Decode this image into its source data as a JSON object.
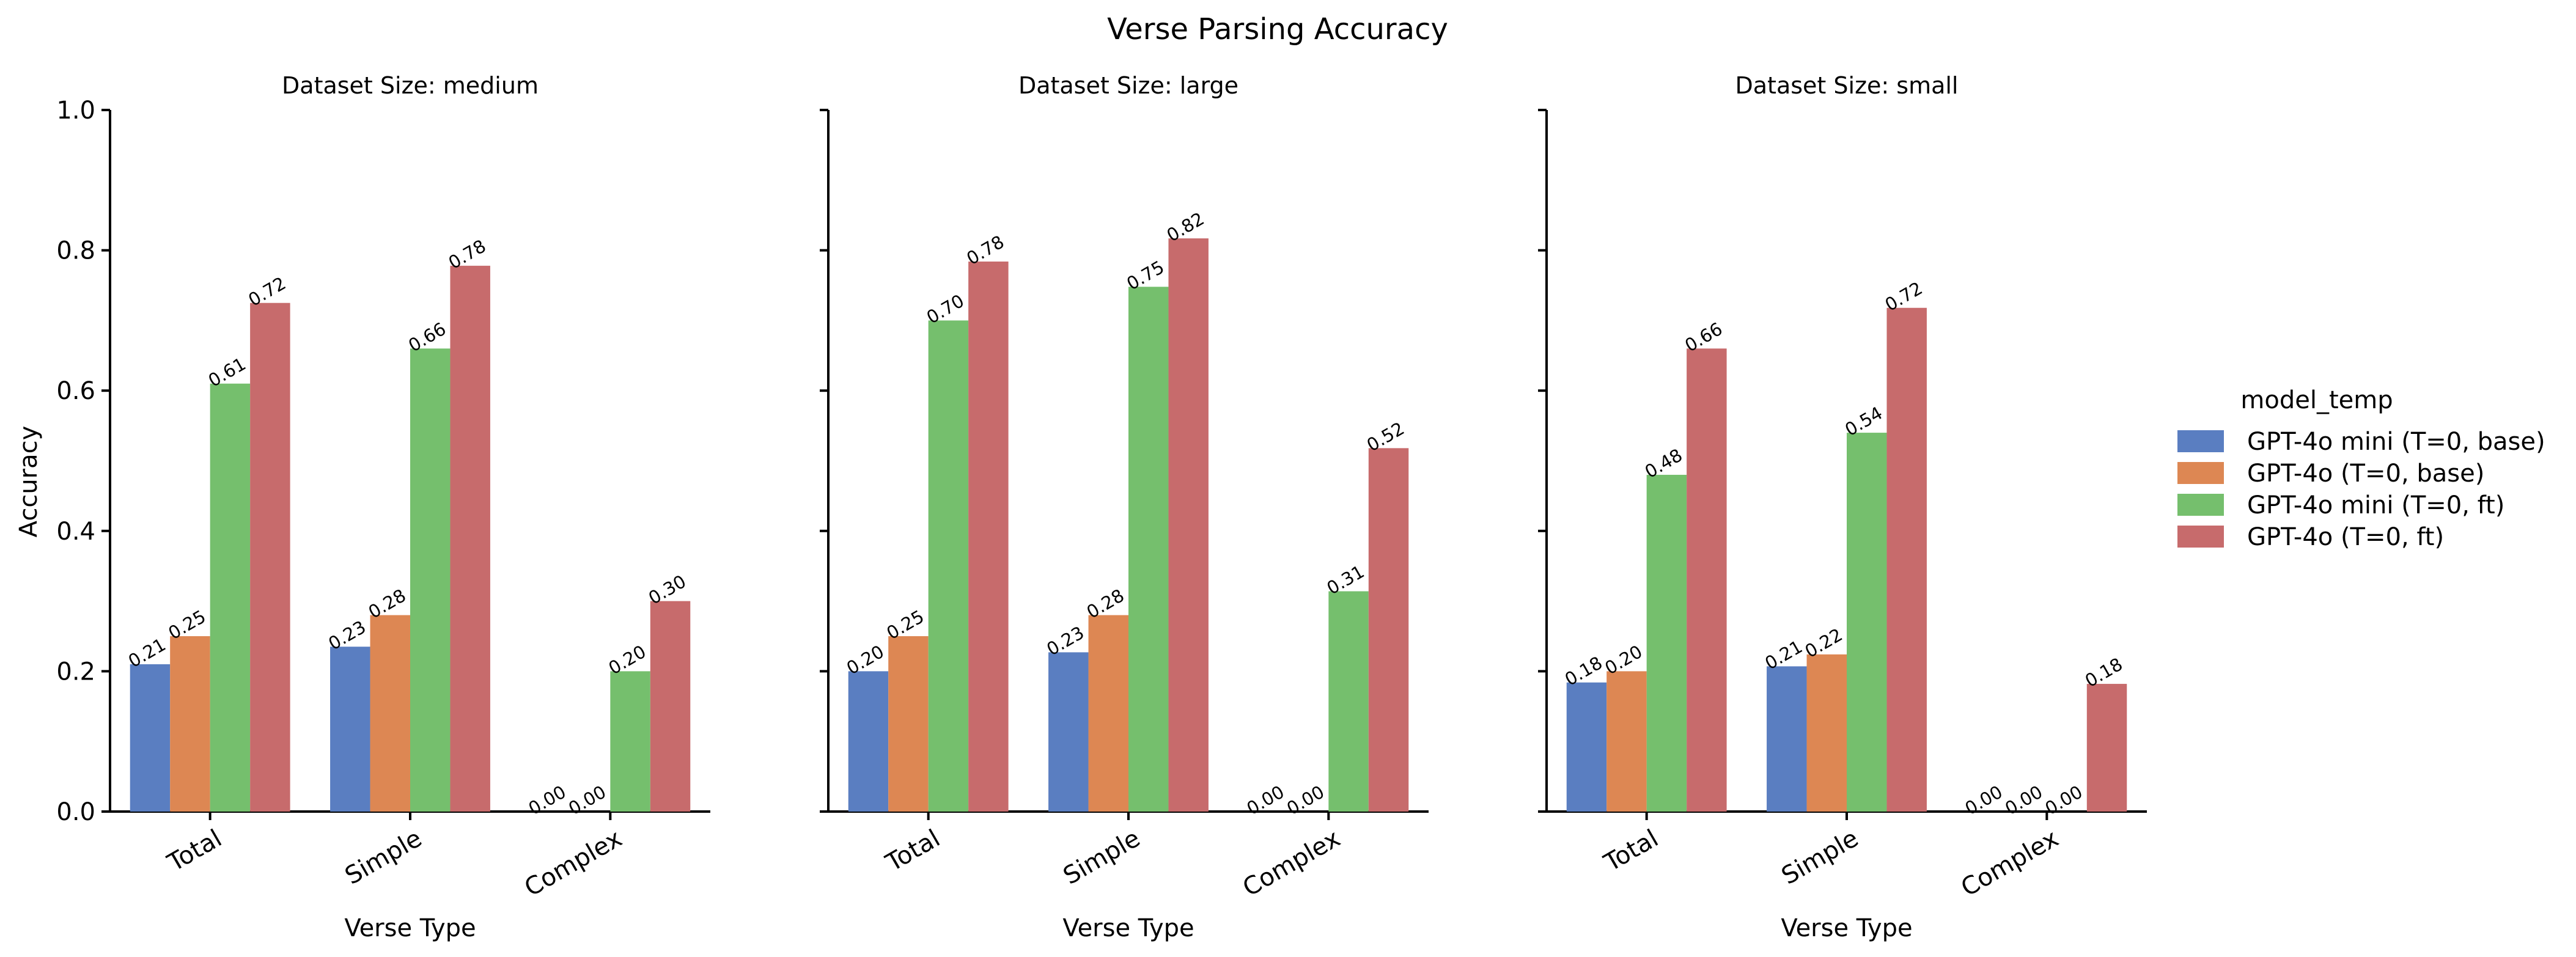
{
  "chart_data": {
    "type": "bar",
    "title": "Verse Parsing Accuracy",
    "ylabel": "Accuracy",
    "xlabel": "Verse Type",
    "ylim": [
      0,
      1.0
    ],
    "yticks": [
      "0.0",
      "0.2",
      "0.4",
      "0.6",
      "0.8",
      "1.0"
    ],
    "grid": false,
    "legend_position": "right",
    "legend_title": "model_temp",
    "series_names": [
      "GPT-4o mini (T=0, base)",
      "GPT-4o (T=0, base)",
      "GPT-4o mini (T=0, ft)",
      "GPT-4o (T=0, ft)"
    ],
    "series_colors": [
      "#5a7ec1",
      "#dd8753",
      "#75bf6d",
      "#c76b6c"
    ],
    "categories": [
      "Total",
      "Simple",
      "Complex"
    ],
    "panels": [
      {
        "title": "Dataset Size: medium",
        "series": [
          {
            "name": "GPT-4o mini (T=0, base)",
            "values": [
              0.21,
              0.235,
              0.0
            ],
            "labels": [
              "0.21",
              "0.23",
              "0.00"
            ]
          },
          {
            "name": "GPT-4o (T=0, base)",
            "values": [
              0.25,
              0.28,
              0.0
            ],
            "labels": [
              "0.25",
              "0.28",
              "0.00"
            ]
          },
          {
            "name": "GPT-4o mini (T=0, ft)",
            "values": [
              0.61,
              0.66,
              0.2
            ],
            "labels": [
              "0.61",
              "0.66",
              "0.20"
            ]
          },
          {
            "name": "GPT-4o (T=0, ft)",
            "values": [
              0.725,
              0.778,
              0.3
            ],
            "labels": [
              "0.72",
              "0.78",
              "0.30"
            ]
          }
        ]
      },
      {
        "title": "Dataset Size: large",
        "series": [
          {
            "name": "GPT-4o mini (T=0, base)",
            "values": [
              0.2,
              0.227,
              0.0
            ],
            "labels": [
              "0.20",
              "0.23",
              "0.00"
            ]
          },
          {
            "name": "GPT-4o (T=0, base)",
            "values": [
              0.25,
              0.28,
              0.0
            ],
            "labels": [
              "0.25",
              "0.28",
              "0.00"
            ]
          },
          {
            "name": "GPT-4o mini (T=0, ft)",
            "values": [
              0.7,
              0.748,
              0.314
            ],
            "labels": [
              "0.70",
              "0.75",
              "0.31"
            ]
          },
          {
            "name": "GPT-4o (T=0, ft)",
            "values": [
              0.784,
              0.817,
              0.518
            ],
            "labels": [
              "0.78",
              "0.82",
              "0.52"
            ]
          }
        ]
      },
      {
        "title": "Dataset Size: small",
        "series": [
          {
            "name": "GPT-4o mini (T=0, base)",
            "values": [
              0.184,
              0.207,
              0.0
            ],
            "labels": [
              "0.18",
              "0.21",
              "0.00"
            ]
          },
          {
            "name": "GPT-4o (T=0, base)",
            "values": [
              0.2,
              0.224,
              0.0
            ],
            "labels": [
              "0.20",
              "0.22",
              "0.00"
            ]
          },
          {
            "name": "GPT-4o mini (T=0, ft)",
            "values": [
              0.48,
              0.54,
              0.0
            ],
            "labels": [
              "0.48",
              "0.54",
              "0.00"
            ]
          },
          {
            "name": "GPT-4o (T=0, ft)",
            "values": [
              0.66,
              0.718,
              0.182
            ],
            "labels": [
              "0.66",
              "0.72",
              "0.18"
            ]
          }
        ]
      }
    ]
  }
}
